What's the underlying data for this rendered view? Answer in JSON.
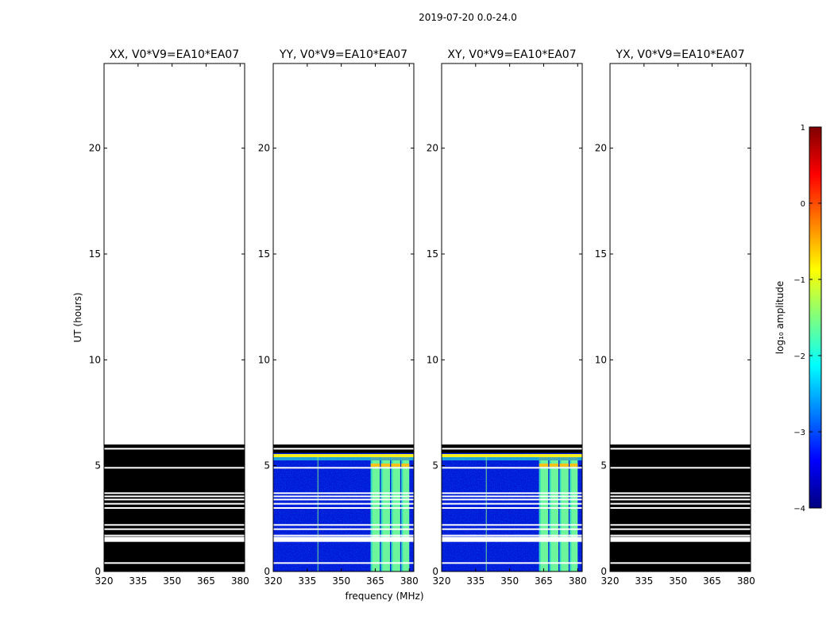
{
  "chart_data": {
    "type": "heatmap",
    "title": "2019-07-20 0.0-24.0",
    "xlabel": "frequency (MHz)",
    "ylabel": "UT (hours)",
    "xlim": [
      320,
      382
    ],
    "ylim": [
      0,
      24
    ],
    "xticks": [
      320,
      335,
      350,
      365,
      380
    ],
    "yticks": [
      0,
      5,
      10,
      15,
      20
    ],
    "data_time_range": [
      0,
      6
    ],
    "panels": [
      {
        "title": "XX, V0*V9=EA10*EA07",
        "state": "flagged"
      },
      {
        "title": "YY, V0*V9=EA10*EA07",
        "state": "data"
      },
      {
        "title": "XY, V0*V9=EA10*EA07",
        "state": "data"
      },
      {
        "title": "YX, V0*V9=EA10*EA07",
        "state": "flagged"
      }
    ],
    "colorbar": {
      "label": "log₁₀ amplitude",
      "range": [
        -4,
        1
      ],
      "ticks": [
        1,
        0,
        -1,
        -2,
        -3,
        -4
      ],
      "tick_labels": [
        "1",
        "0",
        "−1",
        "−2",
        "−3",
        "−4"
      ],
      "colormap": "jet",
      "colors": [
        "#00007f",
        "#0000ff",
        "#007fff",
        "#00ffff",
        "#7fff7f",
        "#ffff00",
        "#ff7f00",
        "#ff0000",
        "#7f0000"
      ]
    },
    "gap_rows_hours": [
      0.4,
      1.5,
      1.6,
      1.7,
      2.0,
      2.2,
      3.0,
      3.2,
      3.4,
      3.55,
      3.7,
      4.9,
      5.8
    ],
    "bright_channel_blocks_mhz": [
      [
        363,
        367
      ],
      [
        367.5,
        371.5
      ],
      [
        372,
        376
      ],
      [
        376.5,
        380
      ]
    ],
    "notes": ""
  }
}
